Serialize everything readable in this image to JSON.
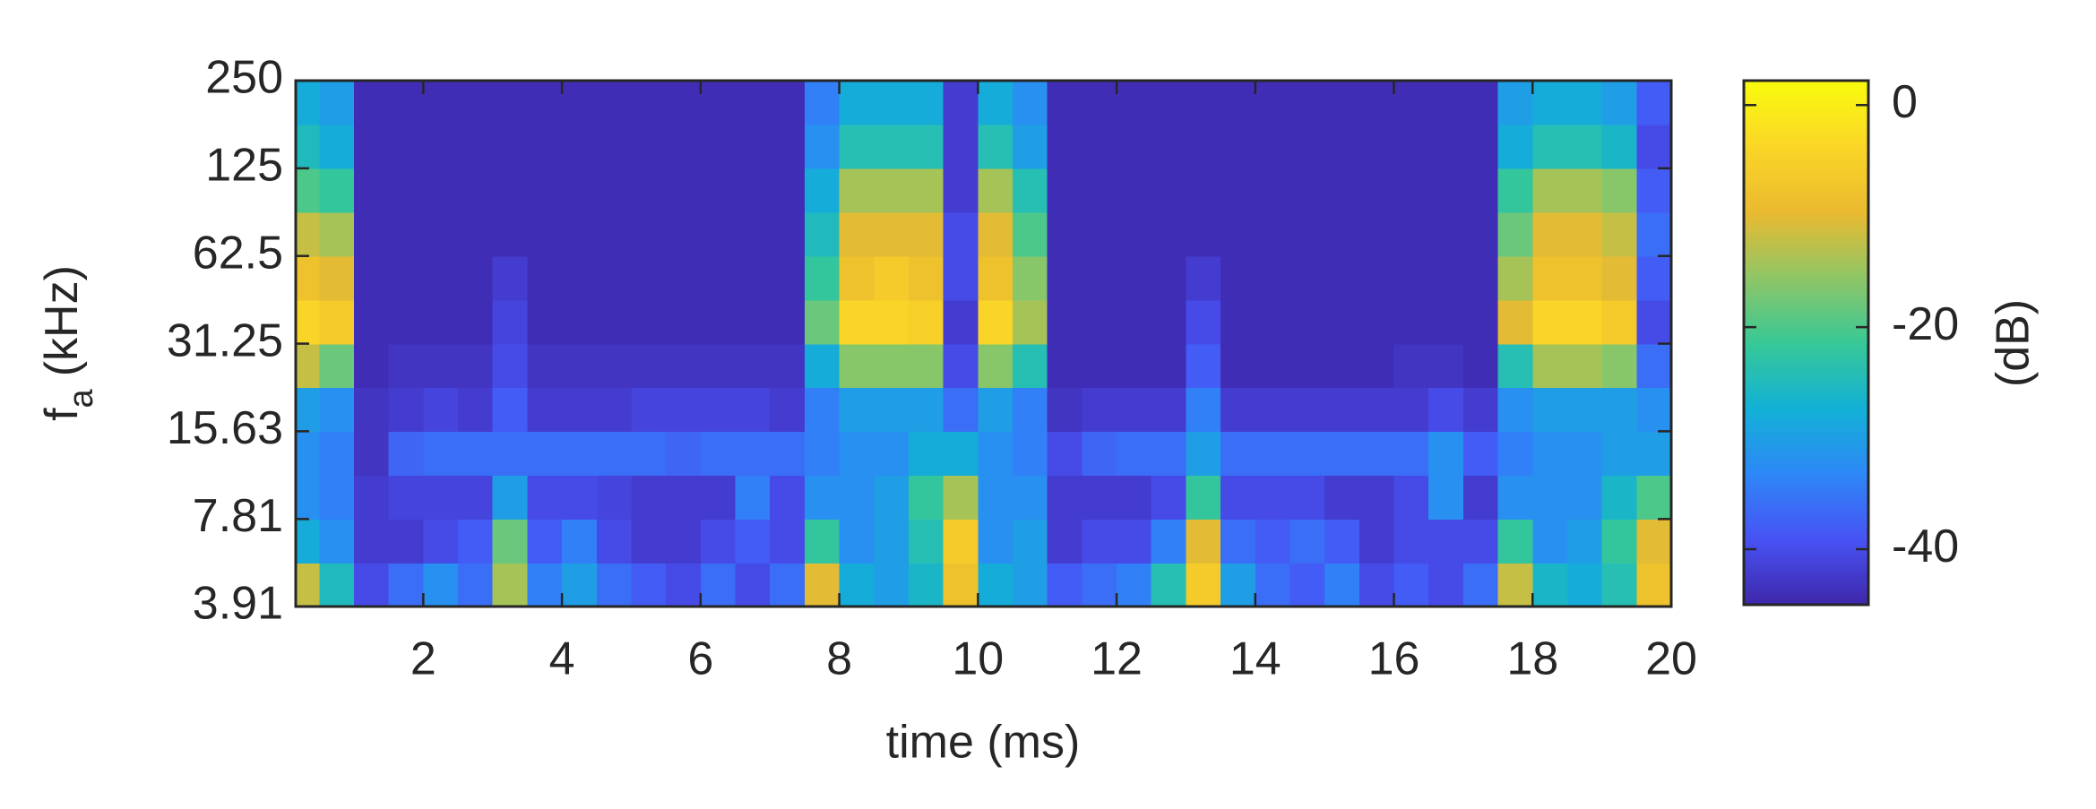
{
  "chart_data": {
    "type": "heatmap",
    "xlabel": "time (ms)",
    "ylabel": {
      "text": "f",
      "subscript": "a",
      "unit": "(kHz)"
    },
    "x": [
      0.25,
      0.75,
      1.25,
      1.75,
      2.25,
      2.75,
      3.25,
      3.75,
      4.25,
      4.75,
      5.25,
      5.75,
      6.25,
      6.75,
      7.25,
      7.75,
      8.25,
      8.75,
      9.25,
      9.75,
      10.25,
      10.75,
      11.25,
      11.75,
      12.25,
      12.75,
      13.25,
      13.75,
      14.25,
      14.75,
      15.25,
      15.75,
      16.25,
      16.75,
      17.25,
      17.75,
      18.25,
      18.75,
      19.25,
      19.75
    ],
    "y": [
      4.65,
      6.57,
      9.29,
      13.14,
      18.58,
      26.28,
      37.16,
      52.56,
      74.33,
      105.1,
      148.7,
      210.2
    ],
    "z": [
      [
        -12,
        -28,
        -32,
        -32,
        -30,
        -12,
        -4,
        -8,
        -12,
        -20,
        -25,
        -28
      ],
      [
        -25,
        -32,
        -34,
        -34,
        -32,
        -18,
        -6,
        -10,
        -14,
        -22,
        -28,
        -30
      ],
      [
        -40,
        -42,
        -42,
        -43,
        -43,
        -44,
        -44,
        -44,
        -44,
        -44,
        -44,
        -44
      ],
      [
        -36,
        -42,
        -41,
        -37,
        -42,
        -43,
        -44,
        -44,
        -44,
        -44,
        -44,
        -44
      ],
      [
        -32,
        -40,
        -41,
        -36,
        -41,
        -43,
        -44,
        -44,
        -44,
        -44,
        -44,
        -44
      ],
      [
        -36,
        -38,
        -41,
        -36,
        -42,
        -43,
        -44,
        -44,
        -44,
        -44,
        -44,
        -44
      ],
      [
        -14,
        -18,
        -30,
        -36,
        -38,
        -40,
        -41,
        -42,
        -44,
        -44,
        -44,
        -44
      ],
      [
        -34,
        -38,
        -40,
        -36,
        -42,
        -43,
        -44,
        -44,
        -44,
        -44,
        -44,
        -44
      ],
      [
        -30,
        -34,
        -40,
        -36,
        -42,
        -43,
        -44,
        -44,
        -44,
        -44,
        -44,
        -44
      ],
      [
        -36,
        -40,
        -41,
        -36,
        -42,
        -43,
        -44,
        -44,
        -44,
        -44,
        -44,
        -44
      ],
      [
        -38,
        -42,
        -42,
        -36,
        -41,
        -43,
        -44,
        -44,
        -44,
        -44,
        -44,
        -44
      ],
      [
        -40,
        -42,
        -42,
        -37,
        -41,
        -43,
        -44,
        -44,
        -44,
        -44,
        -44,
        -44
      ],
      [
        -36,
        -40,
        -42,
        -36,
        -41,
        -43,
        -44,
        -44,
        -44,
        -44,
        -44,
        -44
      ],
      [
        -40,
        -38,
        -34,
        -36,
        -41,
        -43,
        -44,
        -44,
        -44,
        -44,
        -44,
        -44
      ],
      [
        -36,
        -40,
        -40,
        -36,
        -42,
        -43,
        -44,
        -44,
        -44,
        -44,
        -44,
        -44
      ],
      [
        -10,
        -22,
        -32,
        -34,
        -34,
        -28,
        -18,
        -22,
        -25,
        -28,
        -32,
        -34
      ],
      [
        -28,
        -32,
        -32,
        -32,
        -30,
        -16,
        -4,
        -8,
        -10,
        -14,
        -24,
        -28
      ],
      [
        -30,
        -30,
        -30,
        -32,
        -30,
        -16,
        -4,
        -6,
        -10,
        -14,
        -24,
        -28
      ],
      [
        -26,
        -24,
        -22,
        -28,
        -30,
        -16,
        -5,
        -8,
        -10,
        -14,
        -24,
        -28
      ],
      [
        -8,
        -6,
        -14,
        -28,
        -36,
        -40,
        -42,
        -40,
        -40,
        -42,
        -42,
        -42
      ],
      [
        -28,
        -32,
        -32,
        -32,
        -30,
        -16,
        -4,
        -8,
        -10,
        -14,
        -24,
        -28
      ],
      [
        -30,
        -30,
        -32,
        -34,
        -34,
        -24,
        -14,
        -16,
        -20,
        -24,
        -30,
        -32
      ],
      [
        -38,
        -42,
        -42,
        -40,
        -43,
        -44,
        -44,
        -44,
        -44,
        -44,
        -44,
        -44
      ],
      [
        -36,
        -40,
        -42,
        -37,
        -42,
        -44,
        -44,
        -44,
        -44,
        -44,
        -44,
        -44
      ],
      [
        -34,
        -40,
        -42,
        -36,
        -42,
        -44,
        -44,
        -44,
        -44,
        -44,
        -44,
        -44
      ],
      [
        -24,
        -34,
        -40,
        -36,
        -42,
        -44,
        -44,
        -44,
        -44,
        -44,
        -44,
        -44
      ],
      [
        -6,
        -10,
        -22,
        -30,
        -34,
        -38,
        -40,
        -42,
        -44,
        -44,
        -44,
        -44
      ],
      [
        -30,
        -36,
        -40,
        -36,
        -42,
        -44,
        -44,
        -44,
        -44,
        -44,
        -44,
        -44
      ],
      [
        -36,
        -38,
        -40,
        -36,
        -42,
        -44,
        -44,
        -44,
        -44,
        -44,
        -44,
        -44
      ],
      [
        -38,
        -36,
        -40,
        -36,
        -42,
        -44,
        -44,
        -44,
        -44,
        -44,
        -44,
        -44
      ],
      [
        -34,
        -38,
        -42,
        -36,
        -42,
        -44,
        -44,
        -44,
        -44,
        -44,
        -44,
        -44
      ],
      [
        -40,
        -42,
        -42,
        -36,
        -42,
        -44,
        -44,
        -44,
        -44,
        -44,
        -44,
        -44
      ],
      [
        -38,
        -40,
        -40,
        -36,
        -42,
        -43,
        -44,
        -44,
        -44,
        -44,
        -44,
        -44
      ],
      [
        -40,
        -40,
        -32,
        -32,
        -40,
        -43,
        -44,
        -44,
        -44,
        -44,
        -44,
        -44
      ],
      [
        -36,
        -40,
        -42,
        -38,
        -42,
        -44,
        -44,
        -44,
        -44,
        -44,
        -44,
        -44
      ],
      [
        -12,
        -22,
        -32,
        -34,
        -32,
        -24,
        -10,
        -14,
        -18,
        -22,
        -28,
        -30
      ],
      [
        -26,
        -32,
        -32,
        -32,
        -30,
        -14,
        -4,
        -8,
        -10,
        -14,
        -24,
        -28
      ],
      [
        -28,
        -30,
        -32,
        -32,
        -30,
        -14,
        -4,
        -8,
        -10,
        -14,
        -24,
        -28
      ],
      [
        -24,
        -22,
        -26,
        -30,
        -30,
        -16,
        -6,
        -10,
        -12,
        -16,
        -26,
        -30
      ],
      [
        -8,
        -10,
        -20,
        -30,
        -32,
        -36,
        -40,
        -38,
        -36,
        -38,
        -40,
        -38
      ]
    ],
    "xlim": [
      0.16,
      20
    ],
    "ylim": [
      3.91,
      250
    ],
    "log_scale": "y",
    "xticks": [
      2,
      4,
      6,
      8,
      10,
      12,
      14,
      16,
      18,
      20
    ],
    "yticks": [
      3.91,
      7.81,
      15.63,
      31.25,
      62.5,
      125,
      250
    ],
    "colorbar": {
      "label": "(dB)",
      "clim": [
        -45,
        2.2
      ],
      "ticks": [
        -40,
        -20,
        0
      ],
      "colormap": [
        "#3e26a8",
        "#4852f4",
        "#2e87f7",
        "#12b1d6",
        "#37c897",
        "#8fc666",
        "#eaba30",
        "#fad626",
        "#f9fb0e"
      ]
    }
  }
}
